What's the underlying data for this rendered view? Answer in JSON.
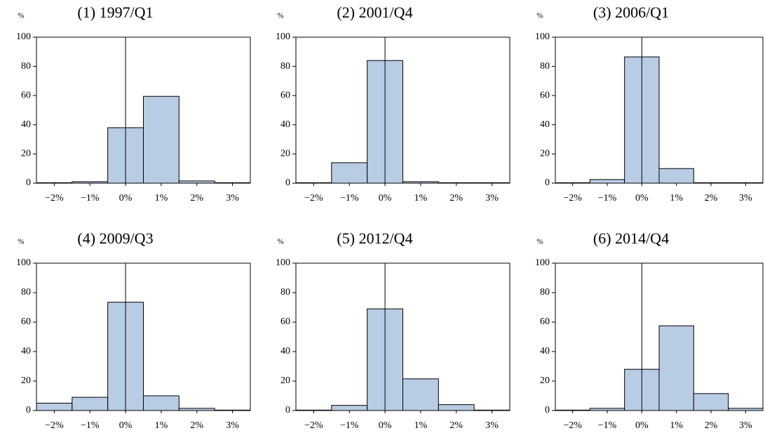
{
  "chart_data": [
    {
      "type": "histogram",
      "title": "(1) 1997/Q1",
      "y_label": "%",
      "bins": [
        -2.5,
        -1.5,
        -0.5,
        0.5,
        1.5,
        2.5,
        3.5
      ],
      "values": [
        0.3,
        1,
        38,
        59.5,
        1.5,
        0.3
      ],
      "color": "#b8cce4",
      "xlim": [
        -2.5,
        3.5
      ],
      "ylim": [
        0,
        100
      ],
      "xticks": [
        {
          "value": -2,
          "label": "−2%"
        },
        {
          "value": -1,
          "label": "−1%"
        },
        {
          "value": 0,
          "label": "0%"
        },
        {
          "value": 1,
          "label": "1%"
        },
        {
          "value": 2,
          "label": "2%"
        },
        {
          "value": 3,
          "label": "3%"
        }
      ],
      "yticks": [
        0,
        20,
        40,
        60,
        80,
        100
      ]
    },
    {
      "type": "histogram",
      "title": "(2) 2001/Q4",
      "y_label": "%",
      "bins": [
        -2.5,
        -1.5,
        -0.5,
        0.5,
        1.5,
        2.5,
        3.5
      ],
      "values": [
        0.3,
        14,
        84,
        1,
        0.3,
        0.3
      ],
      "color": "#b8cce4",
      "xlim": [
        -2.5,
        3.5
      ],
      "ylim": [
        0,
        100
      ],
      "xticks": [
        {
          "value": -2,
          "label": "−2%"
        },
        {
          "value": -1,
          "label": "−1%"
        },
        {
          "value": 0,
          "label": "0%"
        },
        {
          "value": 1,
          "label": "1%"
        },
        {
          "value": 2,
          "label": "2%"
        },
        {
          "value": 3,
          "label": "3%"
        }
      ],
      "yticks": [
        0,
        20,
        40,
        60,
        80,
        100
      ]
    },
    {
      "type": "histogram",
      "title": "(3) 2006/Q1",
      "y_label": "%",
      "bins": [
        -2.5,
        -1.5,
        -0.5,
        0.5,
        1.5,
        2.5,
        3.5
      ],
      "values": [
        0.3,
        2.5,
        86.5,
        10,
        0.3,
        0.3
      ],
      "color": "#b8cce4",
      "xlim": [
        -2.5,
        3.5
      ],
      "ylim": [
        0,
        100
      ],
      "xticks": [
        {
          "value": -2,
          "label": "−2%"
        },
        {
          "value": -1,
          "label": "−1%"
        },
        {
          "value": 0,
          "label": "0%"
        },
        {
          "value": 1,
          "label": "1%"
        },
        {
          "value": 2,
          "label": "2%"
        },
        {
          "value": 3,
          "label": "3%"
        }
      ],
      "yticks": [
        0,
        20,
        40,
        60,
        80,
        100
      ]
    },
    {
      "type": "histogram",
      "title": "(4) 2009/Q3",
      "y_label": "%",
      "bins": [
        -2.5,
        -1.5,
        -0.5,
        0.5,
        1.5,
        2.5,
        3.5
      ],
      "values": [
        5,
        9,
        73.5,
        10,
        1.5,
        0.3
      ],
      "color": "#b8cce4",
      "xlim": [
        -2.5,
        3.5
      ],
      "ylim": [
        0,
        100
      ],
      "xticks": [
        {
          "value": -2,
          "label": "−2%"
        },
        {
          "value": -1,
          "label": "−1%"
        },
        {
          "value": 0,
          "label": "0%"
        },
        {
          "value": 1,
          "label": "1%"
        },
        {
          "value": 2,
          "label": "2%"
        },
        {
          "value": 3,
          "label": "3%"
        }
      ],
      "yticks": [
        0,
        20,
        40,
        60,
        80,
        100
      ]
    },
    {
      "type": "histogram",
      "title": "(5) 2012/Q4",
      "y_label": "%",
      "bins": [
        -2.5,
        -1.5,
        -0.5,
        0.5,
        1.5,
        2.5,
        3.5
      ],
      "values": [
        0.3,
        3.5,
        69,
        21.5,
        4,
        0.3
      ],
      "color": "#b8cce4",
      "xlim": [
        -2.5,
        3.5
      ],
      "ylim": [
        0,
        100
      ],
      "xticks": [
        {
          "value": -2,
          "label": "−2%"
        },
        {
          "value": -1,
          "label": "−1%"
        },
        {
          "value": 0,
          "label": "0%"
        },
        {
          "value": 1,
          "label": "1%"
        },
        {
          "value": 2,
          "label": "2%"
        },
        {
          "value": 3,
          "label": "3%"
        }
      ],
      "yticks": [
        0,
        20,
        40,
        60,
        80,
        100
      ]
    },
    {
      "type": "histogram",
      "title": "(6) 2014/Q4",
      "y_label": "%",
      "bins": [
        -2.5,
        -1.5,
        -0.5,
        0.5,
        1.5,
        2.5,
        3.5
      ],
      "values": [
        0.3,
        1.5,
        28,
        57.5,
        11.5,
        1.5
      ],
      "color": "#b8cce4",
      "xlim": [
        -2.5,
        3.5
      ],
      "ylim": [
        0,
        100
      ],
      "xticks": [
        {
          "value": -2,
          "label": "−2%"
        },
        {
          "value": -1,
          "label": "−1%"
        },
        {
          "value": 0,
          "label": "0%"
        },
        {
          "value": 1,
          "label": "1%"
        },
        {
          "value": 2,
          "label": "2%"
        },
        {
          "value": 3,
          "label": "3%"
        }
      ],
      "yticks": [
        0,
        20,
        40,
        60,
        80,
        100
      ]
    }
  ]
}
